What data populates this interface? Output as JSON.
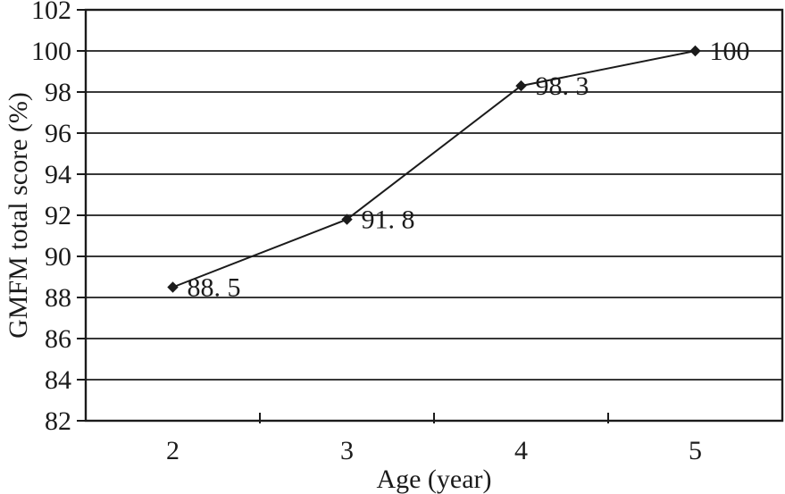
{
  "figure": {
    "background": "#ffffff",
    "ink_color": "#1b1b1b"
  },
  "chart_data": {
    "type": "line",
    "title": "",
    "xlabel": "Age (year)",
    "ylabel": "GMFM total score (%)",
    "categories": [
      "2",
      "3",
      "4",
      "5"
    ],
    "x_values": [
      2,
      3,
      4,
      5
    ],
    "series": [
      {
        "name": "GMFM total score",
        "values": [
          88.5,
          91.8,
          98.3,
          100
        ],
        "point_labels": [
          "88. 5",
          "91. 8",
          "98. 3",
          "100"
        ],
        "marker": "diamond",
        "color": "#1b1b1b"
      }
    ],
    "ylim": [
      82,
      102
    ],
    "yticks": [
      82,
      84,
      86,
      88,
      90,
      92,
      94,
      96,
      98,
      100,
      102
    ],
    "ytick_labels": [
      "82",
      "84",
      "86",
      "88",
      "90",
      "92",
      "94",
      "96",
      "98",
      "100",
      "102"
    ],
    "grid": "horizontal",
    "legend": "none",
    "plot_border": true
  }
}
